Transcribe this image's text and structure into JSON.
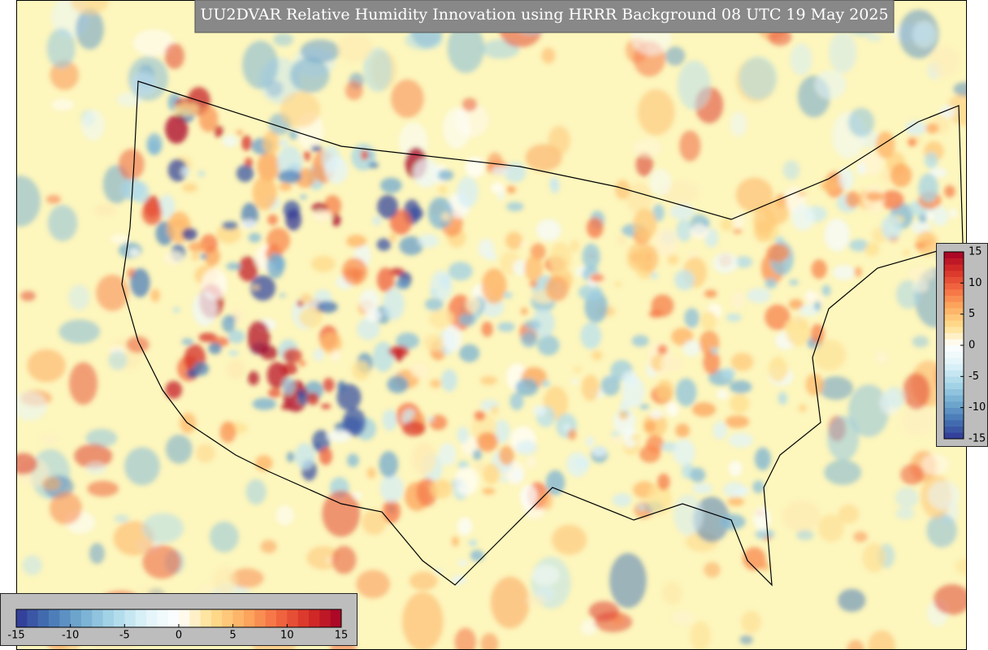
{
  "title": "UU2DVAR Relative Humidity Innovation using HRRR Background 08 UTC 19 May 2025",
  "colorbars": [
    {
      "orientation": "horizontal",
      "range": [
        -15,
        15
      ],
      "ticks": [
        -15,
        -10,
        -5,
        0,
        5,
        10,
        15
      ]
    },
    {
      "orientation": "vertical",
      "range": [
        -15,
        15
      ],
      "ticks": [
        -15,
        -10,
        -5,
        0,
        5,
        10,
        15
      ]
    }
  ],
  "colormap": [
    "#313695",
    "#4575b4",
    "#74add1",
    "#abd9e9",
    "#e0f3f8",
    "#ffffff",
    "#fee090",
    "#fdae61",
    "#f46d43",
    "#d73027",
    "#a50026"
  ],
  "levels": 30
}
